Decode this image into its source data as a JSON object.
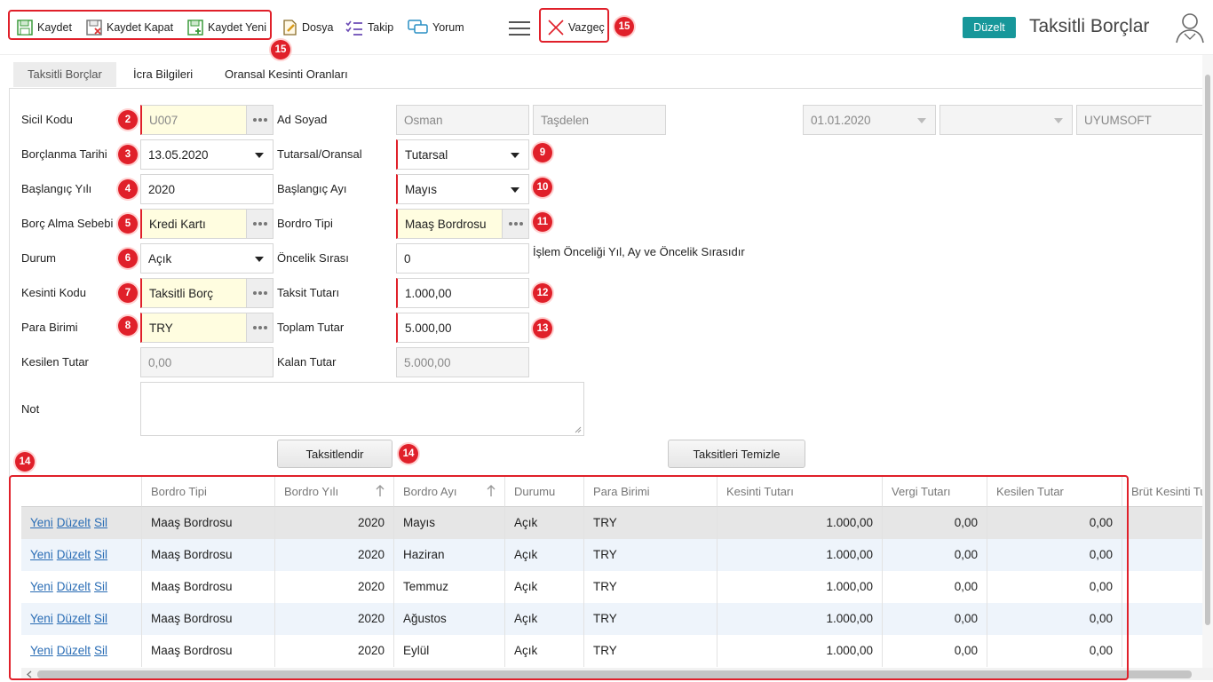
{
  "toolbar": {
    "save": "Kaydet",
    "save_close": "Kaydet Kapat",
    "save_new": "Kaydet Yeni",
    "file": "Dosya",
    "follow": "Takip",
    "comment": "Yorum",
    "cancel": "Vazgeç",
    "mode_badge": "Düzelt",
    "title": "Taksitli Borçlar"
  },
  "tabs": [
    "Taksitli Borçlar",
    "İcra Bilgileri",
    "Oransal Kesinti Oranları"
  ],
  "form": {
    "sicil_kodu": {
      "label": "Sicil Kodu",
      "value": "U007"
    },
    "ad_soyad": {
      "label": "Ad Soyad",
      "first": "Osman",
      "last": "Taşdelen"
    },
    "date_field": "01.01.2020",
    "company": "UYUMSOFT",
    "borclanma_tarihi": {
      "label": "Borçlanma Tarihi",
      "value": "13.05.2020"
    },
    "tutarsal_oransal": {
      "label": "Tutarsal/Oransal",
      "value": "Tutarsal"
    },
    "baslangic_yili": {
      "label": "Başlangıç Yılı",
      "value": "2020"
    },
    "baslangic_ayi": {
      "label": "Başlangıç Ayı",
      "value": "Mayıs"
    },
    "borc_alma_sebebi": {
      "label": "Borç Alma Sebebi",
      "value": "Kredi Kartı"
    },
    "bordro_tipi": {
      "label": "Bordro Tipi",
      "value": "Maaş Bordrosu"
    },
    "durum": {
      "label": "Durum",
      "value": "Açık"
    },
    "oncelik_sirasi": {
      "label": "Öncelik Sırası",
      "value": "0",
      "hint": "İşlem Önceliği Yıl, Ay ve Öncelik Sırasıdır"
    },
    "kesinti_kodu": {
      "label": "Kesinti Kodu",
      "value": "Taksitli Borç"
    },
    "taksit_tutari": {
      "label": "Taksit Tutarı",
      "value": "1.000,00"
    },
    "para_birimi": {
      "label": "Para Birimi",
      "value": "TRY"
    },
    "toplam_tutar": {
      "label": "Toplam Tutar",
      "value": "5.000,00"
    },
    "kesilen_tutar": {
      "label": "Kesilen Tutar",
      "value": "0,00"
    },
    "kalan_tutar": {
      "label": "Kalan Tutar",
      "value": "5.000,00"
    },
    "not": {
      "label": "Not",
      "value": ""
    }
  },
  "buttons": {
    "taksitlendir": "Taksitlendir",
    "temizle": "Taksitleri Temizle"
  },
  "badges": {
    "b2": "2",
    "b3": "3",
    "b4": "4",
    "b5": "5",
    "b6": "6",
    "b7": "7",
    "b8": "8",
    "b9": "9",
    "b10": "10",
    "b11": "11",
    "b12": "12",
    "b13": "13",
    "b14": "14",
    "b15": "15"
  },
  "grid": {
    "columns": [
      "",
      "Bordro Tipi",
      "Bordro Yılı",
      "Bordro Ayı",
      "Durumu",
      "Para Birimi",
      "Kesinti Tutarı",
      "Vergi Tutarı",
      "Kesilen Tutar",
      "Brüt Kesinti Tutarı"
    ],
    "actions": {
      "new": "Yeni",
      "edit": "Düzelt",
      "delete": "Sil"
    },
    "rows": [
      {
        "bordro_tipi": "Maaş Bordrosu",
        "yil": "2020",
        "ay": "Mayıs",
        "durum": "Açık",
        "para": "TRY",
        "kesinti": "1.000,00",
        "vergi": "0,00",
        "kesilen": "0,00"
      },
      {
        "bordro_tipi": "Maaş Bordrosu",
        "yil": "2020",
        "ay": "Haziran",
        "durum": "Açık",
        "para": "TRY",
        "kesinti": "1.000,00",
        "vergi": "0,00",
        "kesilen": "0,00"
      },
      {
        "bordro_tipi": "Maaş Bordrosu",
        "yil": "2020",
        "ay": "Temmuz",
        "durum": "Açık",
        "para": "TRY",
        "kesinti": "1.000,00",
        "vergi": "0,00",
        "kesilen": "0,00"
      },
      {
        "bordro_tipi": "Maaş Bordrosu",
        "yil": "2020",
        "ay": "Ağustos",
        "durum": "Açık",
        "para": "TRY",
        "kesinti": "1.000,00",
        "vergi": "0,00",
        "kesilen": "0,00"
      },
      {
        "bordro_tipi": "Maaş Bordrosu",
        "yil": "2020",
        "ay": "Eylül",
        "durum": "Açık",
        "para": "TRY",
        "kesinti": "1.000,00",
        "vergi": "0,00",
        "kesilen": "0,00"
      }
    ]
  },
  "colors": {
    "accent": "#17979a",
    "annotation": "#e0202a",
    "required_border": "#e0202a",
    "lookup_bg": "#fffde0"
  }
}
